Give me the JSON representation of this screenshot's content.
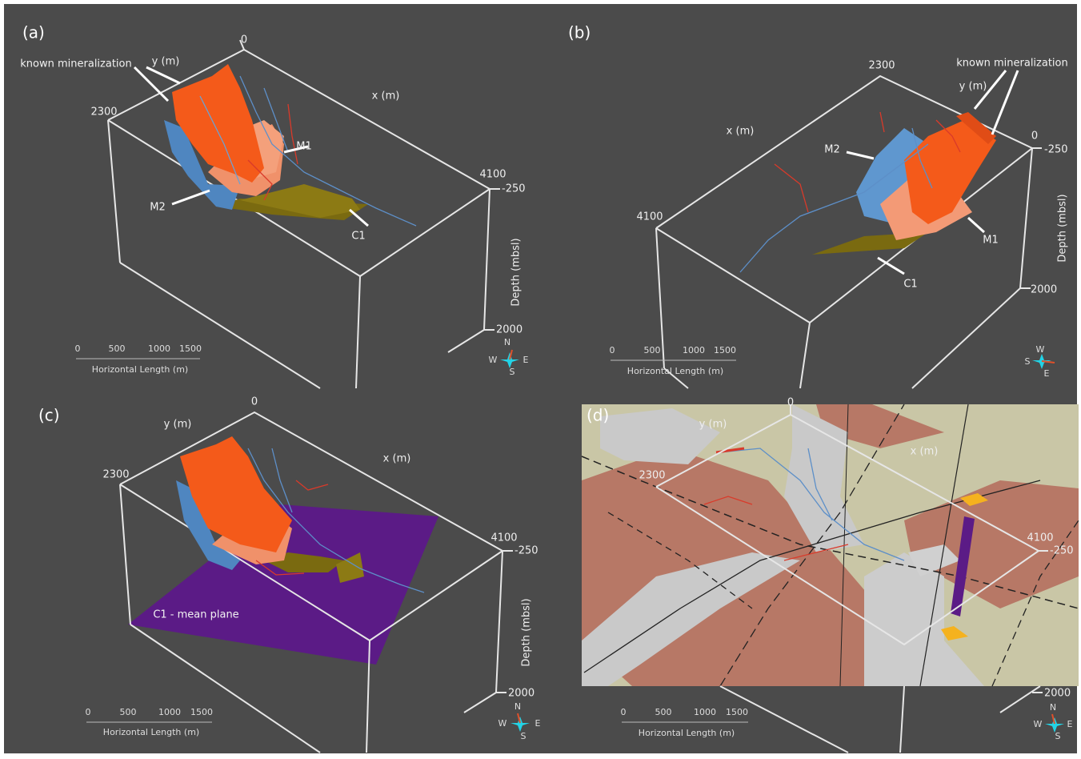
{
  "panels": [
    {
      "label": "(a)",
      "y_axis": "y (m)",
      "x_axis": "x (m)",
      "depth_axis": "Depth (mbsl)",
      "ticks": [
        "0",
        "2300",
        "4100",
        "-250",
        "2000"
      ],
      "annotations": [
        "known mineralization",
        "M1",
        "M2",
        "C1"
      ],
      "scale_ticks": [
        "0",
        "500",
        "1000",
        "1500"
      ],
      "scale_title": "Horizontal Length (m)",
      "compass": [
        "N",
        "W",
        "E",
        "S"
      ]
    },
    {
      "label": "(b)",
      "y_axis": "y (m)",
      "x_axis": "x (m)",
      "depth_axis": "Depth (mbsl)",
      "ticks": [
        "0",
        "2300",
        "4100",
        "-250",
        "2000"
      ],
      "annotations": [
        "known mineralization",
        "M1",
        "M2",
        "C1"
      ],
      "scale_ticks": [
        "0",
        "500",
        "1000",
        "1500"
      ],
      "scale_title": "Horizontal Length (m)",
      "compass": [
        "W",
        "S",
        "E"
      ]
    },
    {
      "label": "(c)",
      "y_axis": "y (m)",
      "x_axis": "x (m)",
      "depth_axis": "Depth (mbsl)",
      "ticks": [
        "0",
        "2300",
        "4100",
        "-250",
        "2000"
      ],
      "annotations": [
        "C1 - mean plane"
      ],
      "scale_ticks": [
        "0",
        "500",
        "1000",
        "1500"
      ],
      "scale_title": "Horizontal Length (m)",
      "compass": [
        "N",
        "W",
        "E",
        "S"
      ]
    },
    {
      "label": "(d)",
      "y_axis": "y (m)",
      "x_axis": "x (m)",
      "ticks": [
        "0",
        "2300",
        "4100",
        "-250",
        "2000"
      ],
      "scale_ticks": [
        "0",
        "500",
        "1000",
        "1500"
      ],
      "scale_title": "Horizontal Length (m)",
      "compass": [
        "N",
        "W",
        "E",
        "S"
      ]
    }
  ]
}
